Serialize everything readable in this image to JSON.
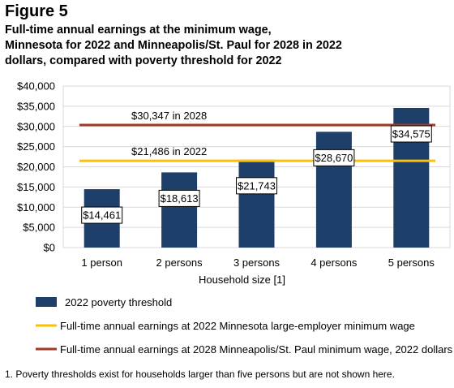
{
  "figure_label": "Figure 5",
  "title_lines": [
    "Full-time annual earnings at the minimum wage,",
    "Minnesota for 2022 and Minneapolis/St. Paul for 2028 in 2022",
    "dollars, compared with poverty threshold for 2022"
  ],
  "footnote": "1.  Poverty thresholds exist for households larger than five persons but are not shown here.",
  "colors": {
    "bar": "#1f3f6b",
    "line_2022": "#ffc000",
    "line_2028": "#9e3a26",
    "grid": "#d9d9d9"
  },
  "chart_data": {
    "type": "bar",
    "categories": [
      "1 person",
      "2 persons",
      "3 persons",
      "4 persons",
      "5 persons"
    ],
    "series": [
      {
        "name": "2022 poverty threshold",
        "values": [
          14461,
          18613,
          21743,
          28670,
          34575
        ]
      }
    ],
    "data_labels": [
      "$14,461",
      "$18,613",
      "$21,743",
      "$28,670",
      "$34,575"
    ],
    "reference_lines": [
      {
        "name": "Full-time annual earnings at 2022 Minnesota large-employer minimum wage",
        "value": 21486,
        "label": "$21,486 in 2022"
      },
      {
        "name": "Full-time annual earnings at 2028 Minneapolis/St. Paul minimum wage, 2022 dollars",
        "value": 30347,
        "label": "$30,347 in 2028"
      }
    ],
    "xlabel": "Household size [1]",
    "ylabel": "",
    "ylim": [
      0,
      40000
    ],
    "yticks": [
      0,
      5000,
      10000,
      15000,
      20000,
      25000,
      30000,
      35000,
      40000
    ],
    "ytick_labels": [
      "$0",
      "$5,000",
      "$10,000",
      "$15,000",
      "$20,000",
      "$25,000",
      "$30,000",
      "$35,000",
      "$40,000"
    ],
    "grid": true,
    "legend_position": "bottom"
  }
}
